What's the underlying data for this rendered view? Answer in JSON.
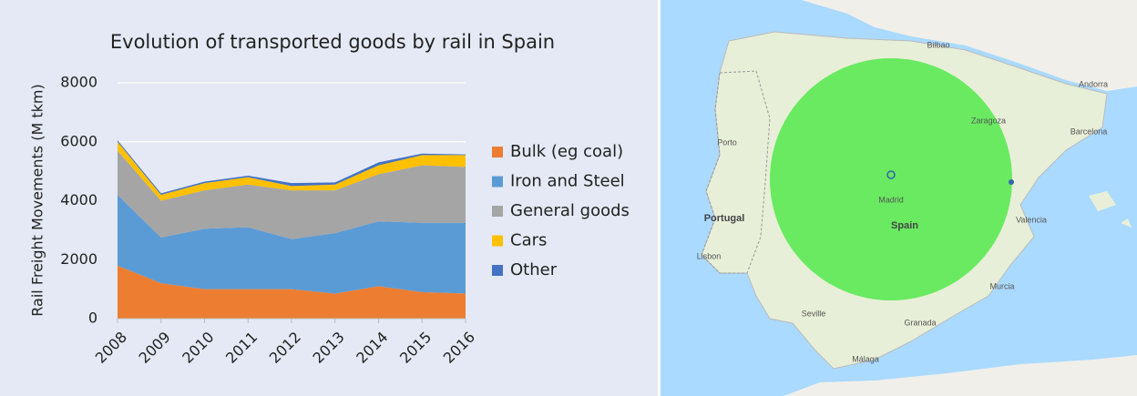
{
  "chart_data": {
    "type": "stacked_area",
    "title": "Evolution of transported goods by rail in Spain",
    "y_label": "Rail Freight Movements (M tkm)",
    "categories": [
      "2008",
      "2009",
      "2010",
      "2011",
      "2012",
      "2013",
      "2014",
      "2015",
      "2016"
    ],
    "series": [
      {
        "name": "Bulk (eg coal)",
        "color": "#ed7d31",
        "values": [
          1800,
          1200,
          1000,
          1000,
          1000,
          850,
          1100,
          900,
          850
        ]
      },
      {
        "name": "Iron and Steel",
        "color": "#5b9bd5",
        "values": [
          2400,
          1550,
          2050,
          2100,
          1700,
          2050,
          2200,
          2350,
          2400
        ]
      },
      {
        "name": "General goods",
        "color": "#a5a5a5",
        "values": [
          1500,
          1250,
          1300,
          1450,
          1650,
          1450,
          1600,
          1950,
          1900
        ]
      },
      {
        "name": "Cars",
        "color": "#ffc000",
        "values": [
          300,
          200,
          250,
          250,
          150,
          200,
          300,
          350,
          400
        ]
      },
      {
        "name": "Other",
        "color": "#4472c4",
        "values": [
          50,
          50,
          50,
          50,
          100,
          70,
          100,
          50,
          20
        ]
      }
    ],
    "ylim": [
      0,
      8000
    ],
    "yticks": [
      0,
      2000,
      4000,
      6000,
      8000
    ],
    "grid": true,
    "legend": "right"
  },
  "map": {
    "labels": [
      "Portugal",
      "Spain",
      "Madrid",
      "Lisbon",
      "Porto",
      "Barcelona",
      "Valencia",
      "Seville",
      "Bilbao",
      "Zaragoza",
      "Málaga",
      "Andorra",
      "Murcia",
      "Granada"
    ]
  }
}
